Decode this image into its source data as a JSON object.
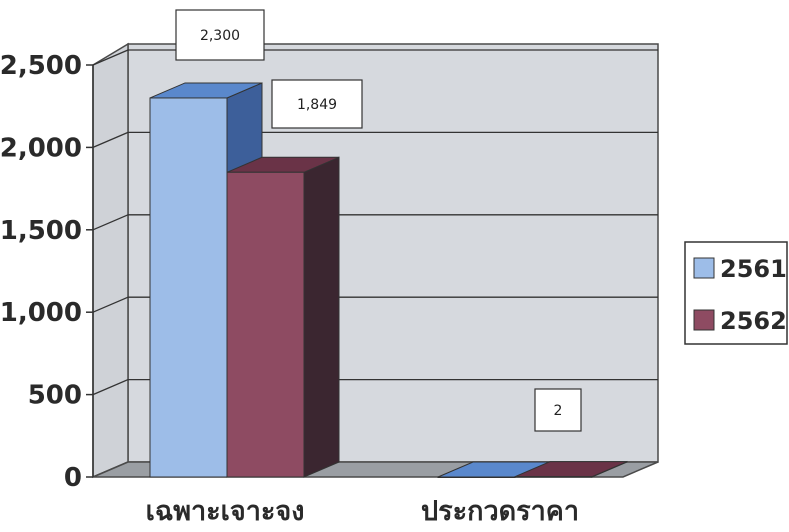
{
  "chart_data": {
    "type": "bar",
    "title": "",
    "xlabel": "",
    "ylabel": "",
    "categories": [
      "เฉพาะเจาะจง",
      "ประกวดราคา"
    ],
    "series": [
      {
        "name": "2561",
        "values": [
          2300,
          0
        ],
        "color": "#9dbde8"
      },
      {
        "name": "2562",
        "values": [
          1849,
          2
        ],
        "color": "#8e4b62"
      }
    ],
    "data_labels": [
      {
        "text": "2,300",
        "category": 0,
        "series": 0
      },
      {
        "text": "1,849",
        "category": 0,
        "series": 1
      },
      {
        "text": "2",
        "category": 1,
        "series": 1
      }
    ],
    "ylim": [
      0,
      2500
    ],
    "yticks": [
      0,
      500,
      1000,
      1500,
      2000,
      2500
    ],
    "ytick_labels": [
      "0",
      "500",
      "1,000",
      "1,500",
      "2,000",
      "2,500"
    ],
    "grid": true,
    "legend_position": "right",
    "style": "3d-clustered-column"
  }
}
